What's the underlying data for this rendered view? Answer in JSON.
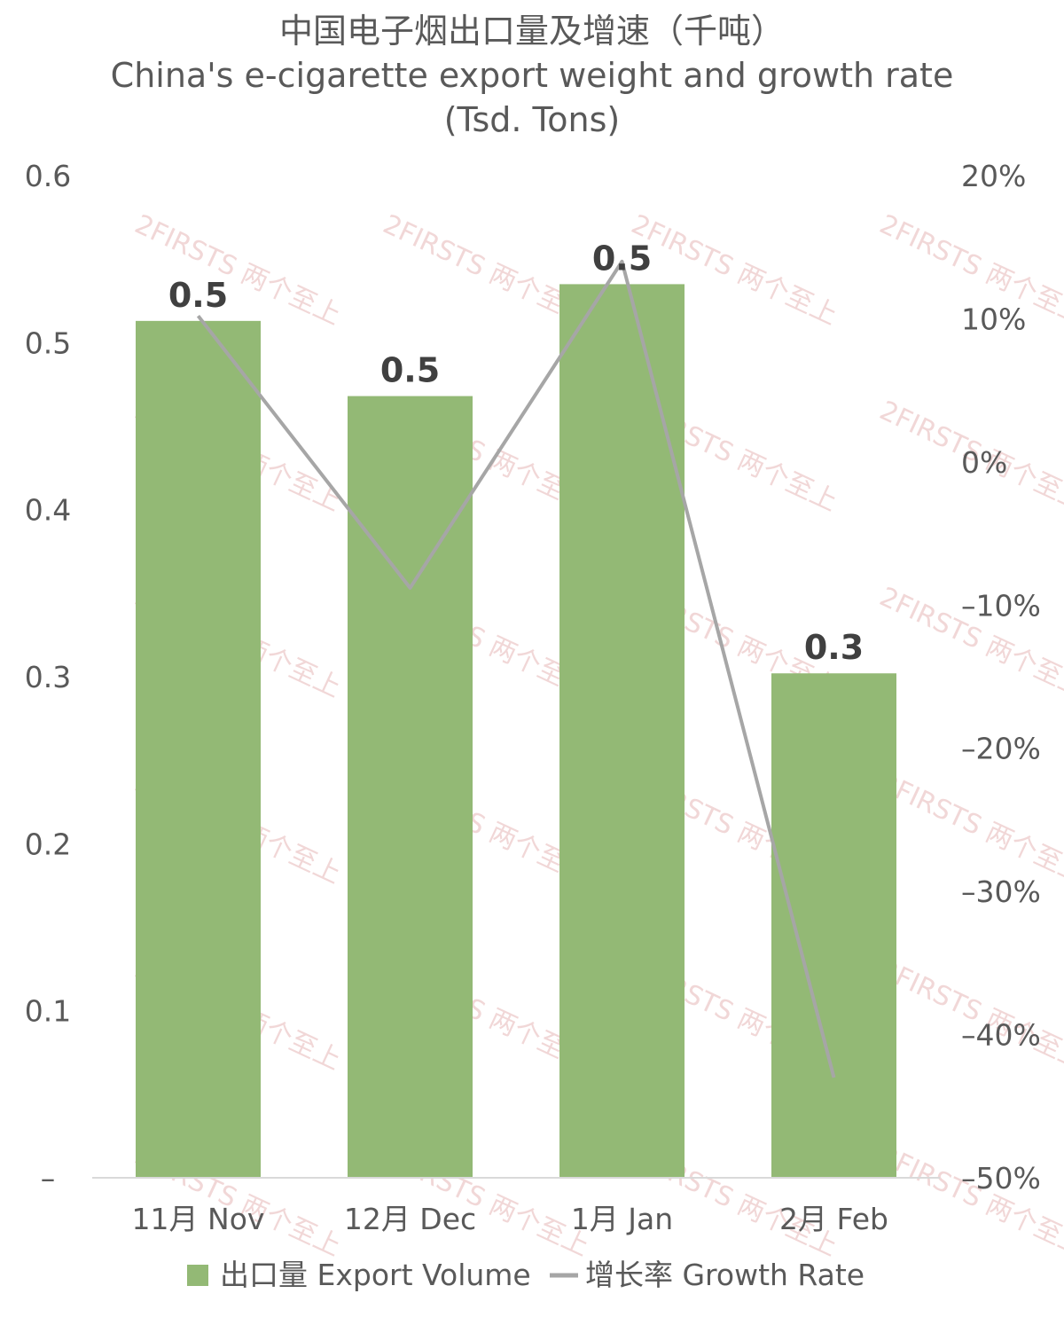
{
  "chart_data": {
    "type": "bar",
    "title": "中国电子烟出口量及增速（千吨）",
    "subtitle": "China's e-cigarette export weight and growth rate (Tsd. Tons)",
    "categories": [
      "11月 Nov",
      "12月 Dec",
      "1月 Jan",
      "2月 Feb"
    ],
    "series": [
      {
        "name": "出口量 Export Volume",
        "type": "bar",
        "axis": "left",
        "color": "#93b975",
        "values": [
          0.513,
          0.468,
          0.535,
          0.302
        ],
        "data_labels": [
          "0.5",
          "0.5",
          "0.5",
          "0.3"
        ]
      },
      {
        "name": "增长率 Growth Rate",
        "type": "line",
        "axis": "right",
        "color": "#a6a6a6",
        "values": [
          10.2,
          -8.8,
          14.0,
          -43.0
        ]
      }
    ],
    "y_left": {
      "ylim": [
        0,
        0.6
      ],
      "ticks": [
        0,
        0.1,
        0.2,
        0.3,
        0.4,
        0.5,
        0.6
      ],
      "tick_labels": [
        "–",
        "0.1",
        "0.2",
        "0.3",
        "0.4",
        "0.5",
        "0.6"
      ]
    },
    "y_right": {
      "ylim": [
        -50,
        20
      ],
      "ticks": [
        -50,
        -40,
        -30,
        -20,
        -10,
        0,
        10,
        20
      ],
      "tick_labels": [
        "–50%",
        "–40%",
        "–30%",
        "–20%",
        "–10%",
        "0%",
        "10%",
        "20%"
      ]
    },
    "grid": false,
    "legend_position": "bottom",
    "watermark": "2FIRSTS 两个至上"
  }
}
